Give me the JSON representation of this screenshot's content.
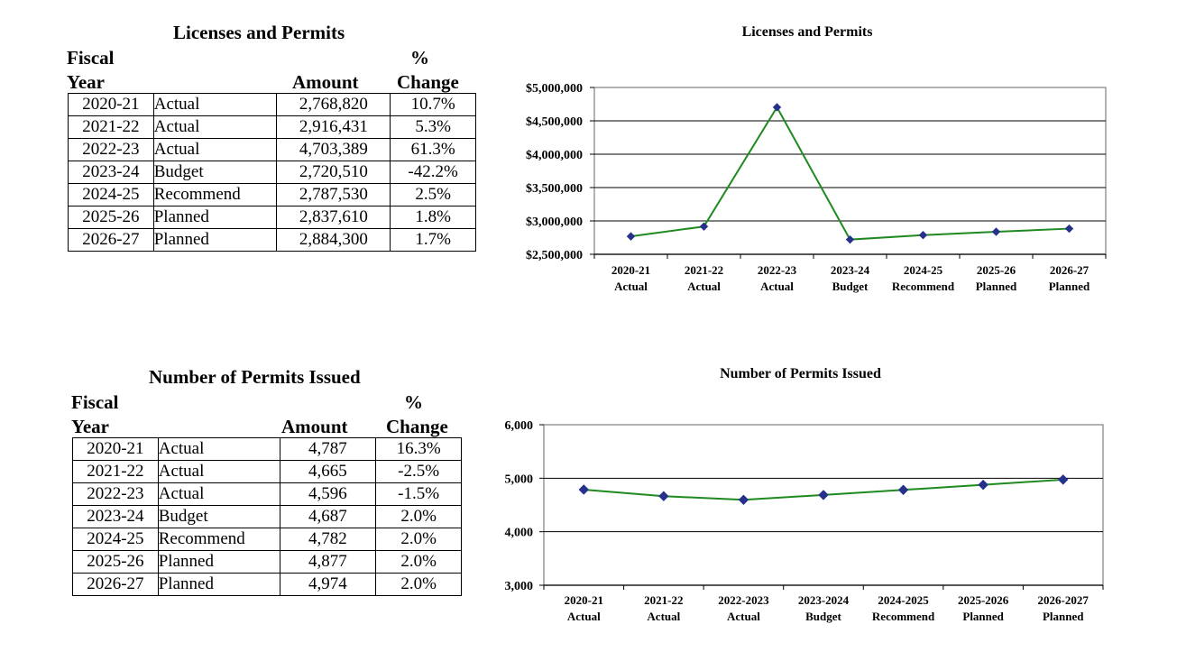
{
  "top": {
    "table": {
      "title": "Licenses and Permits",
      "headers": {
        "fiscal": "Fiscal",
        "year": "Year",
        "amount": "Amount",
        "pct": "%",
        "change": "Change"
      },
      "rows": [
        {
          "year": "2020-21",
          "type": "Actual",
          "amount": "2,768,820",
          "change": "10.7%"
        },
        {
          "year": "2021-22",
          "type": "Actual",
          "amount": "2,916,431",
          "change": "5.3%"
        },
        {
          "year": "2022-23",
          "type": "Actual",
          "amount": "4,703,389",
          "change": "61.3%"
        },
        {
          "year": "2023-24",
          "type": "Budget",
          "amount": "2,720,510",
          "change": "-42.2%"
        },
        {
          "year": "2024-25",
          "type": "Recommend",
          "amount": "2,787,530",
          "change": "2.5%"
        },
        {
          "year": "2025-26",
          "type": "Planned",
          "amount": "2,837,610",
          "change": "1.8%"
        },
        {
          "year": "2026-27",
          "type": "Planned",
          "amount": "2,884,300",
          "change": "1.7%"
        }
      ]
    }
  },
  "bottom": {
    "table": {
      "title": "Number of Permits Issued",
      "headers": {
        "fiscal": "Fiscal",
        "year": "Year",
        "amount": "Amount",
        "pct": "%",
        "change": "Change"
      },
      "rows": [
        {
          "year": "2020-21",
          "type": "Actual",
          "amount": "4,787",
          "change": "16.3%"
        },
        {
          "year": "2021-22",
          "type": "Actual",
          "amount": "4,665",
          "change": "-2.5%"
        },
        {
          "year": "2022-23",
          "type": "Actual",
          "amount": "4,596",
          "change": "-1.5%"
        },
        {
          "year": "2023-24",
          "type": "Budget",
          "amount": "4,687",
          "change": "2.0%"
        },
        {
          "year": "2024-25",
          "type": "Recommend",
          "amount": "4,782",
          "change": "2.0%"
        },
        {
          "year": "2025-26",
          "type": "Planned",
          "amount": "4,877",
          "change": "2.0%"
        },
        {
          "year": "2026-27",
          "type": "Planned",
          "amount": "4,974",
          "change": "2.0%"
        }
      ]
    }
  },
  "chart_data": [
    {
      "type": "line",
      "title": "Licenses and Permits",
      "categories": [
        [
          "2020-21",
          "Actual"
        ],
        [
          "2021-22",
          "Actual"
        ],
        [
          "2022-23",
          "Actual"
        ],
        [
          "2023-24",
          "Budget"
        ],
        [
          "2024-25",
          "Recommend"
        ],
        [
          "2025-26",
          "Planned"
        ],
        [
          "2026-27",
          "Planned"
        ]
      ],
      "series": [
        {
          "values": [
            2768820,
            2916431,
            4703389,
            2720510,
            2787530,
            2837610,
            2884300
          ]
        }
      ],
      "ylim": [
        2500000,
        5000000
      ],
      "yticks": [
        2500000,
        3000000,
        3500000,
        4000000,
        4500000,
        5000000
      ],
      "ytick_labels": [
        "$2,500,000",
        "$3,000,000",
        "$3,500,000",
        "$4,000,000",
        "$4,500,000",
        "$5,000,000"
      ],
      "grid": true,
      "line_color": "#1f8a1f",
      "marker_color": "#26318c"
    },
    {
      "type": "line",
      "title": "Number of Permits Issued",
      "categories": [
        [
          "2020-21",
          "Actual"
        ],
        [
          "2021-22",
          "Actual"
        ],
        [
          "2022-2023",
          "Actual"
        ],
        [
          "2023-2024",
          "Budget"
        ],
        [
          "2024-2025",
          "Recommend"
        ],
        [
          "2025-2026",
          "Planned"
        ],
        [
          "2026-2027",
          "Planned"
        ]
      ],
      "series": [
        {
          "values": [
            4787,
            4665,
            4596,
            4687,
            4782,
            4877,
            4974
          ]
        }
      ],
      "ylim": [
        3000,
        6000
      ],
      "yticks": [
        3000,
        4000,
        5000,
        6000
      ],
      "ytick_labels": [
        "3,000",
        "4,000",
        "5,000",
        "6,000"
      ],
      "grid": true,
      "line_color": "#1f8a1f",
      "marker_color": "#26318c"
    }
  ]
}
